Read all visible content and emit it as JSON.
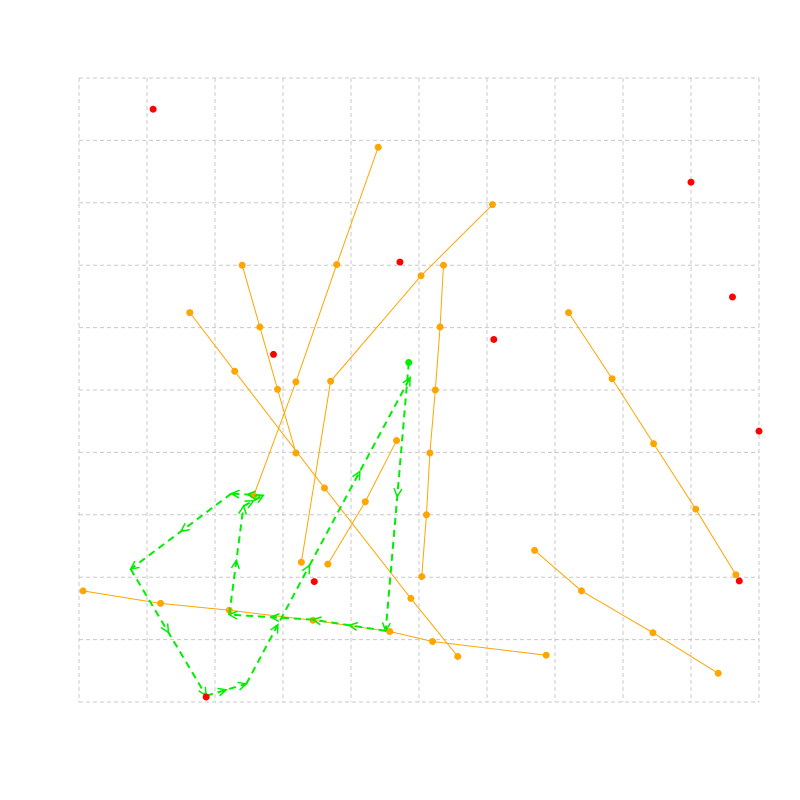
{
  "chart_data": {
    "type": "scatter",
    "title": "",
    "xlabel": "",
    "ylabel": "",
    "xlim": [
      0,
      10
    ],
    "ylim": [
      0,
      10
    ],
    "grid": true,
    "grid_style": "dashed",
    "ticks_visible": false,
    "colors": {
      "orange": "#ffa500",
      "red": "#ff0000",
      "green": "#00ee00",
      "grid": "#c8c8c8"
    },
    "orange_lines": [
      [
        [
          1.63,
          6.24
        ],
        [
          2.29,
          5.3
        ],
        [
          3.61,
          3.43
        ],
        [
          4.88,
          1.66
        ],
        [
          5.57,
          0.73
        ]
      ],
      [
        [
          2.4,
          7.0
        ],
        [
          2.66,
          6.01
        ],
        [
          2.92,
          5.01
        ],
        [
          3.19,
          3.99
        ]
      ],
      [
        [
          2.57,
          3.31
        ],
        [
          3.19,
          5.13
        ],
        [
          3.79,
          7.01
        ],
        [
          4.4,
          8.89
        ]
      ],
      [
        [
          5.36,
          7.0
        ],
        [
          5.31,
          6.01
        ],
        [
          5.24,
          5.0
        ],
        [
          5.16,
          3.99
        ],
        [
          5.11,
          3.0
        ],
        [
          5.04,
          2.01
        ]
      ],
      [
        [
          3.66,
          2.21
        ],
        [
          4.21,
          3.21
        ],
        [
          4.67,
          4.19
        ]
      ],
      [
        [
          3.27,
          2.24
        ],
        [
          3.7,
          5.14
        ],
        [
          5.03,
          6.83
        ],
        [
          6.08,
          7.97
        ]
      ],
      [
        [
          6.7,
          2.43
        ],
        [
          7.39,
          1.78
        ],
        [
          8.44,
          1.11
        ],
        [
          9.4,
          0.46
        ]
      ],
      [
        [
          7.2,
          6.24
        ],
        [
          7.84,
          5.18
        ],
        [
          8.45,
          4.14
        ],
        [
          9.07,
          3.09
        ],
        [
          9.66,
          2.04
        ]
      ],
      [
        [
          0.06,
          1.78
        ],
        [
          1.2,
          1.58
        ],
        [
          2.21,
          1.47
        ],
        [
          3.44,
          1.31
        ],
        [
          4.57,
          1.13
        ],
        [
          5.2,
          0.97
        ],
        [
          6.87,
          0.75
        ]
      ]
    ],
    "green_path": [
      [
        4.85,
        5.44
      ],
      [
        4.51,
        1.14
      ],
      [
        3.44,
        1.32
      ],
      [
        2.21,
        1.4
      ],
      [
        2.42,
        3.14
      ],
      [
        2.71,
        3.31
      ],
      [
        2.24,
        3.34
      ],
      [
        0.76,
        2.13
      ],
      [
        1.87,
        0.1
      ],
      [
        2.46,
        0.29
      ],
      [
        3.39,
        2.19
      ],
      [
        4.87,
        5.2
      ]
    ],
    "red_points": [
      [
        1.09,
        9.5
      ],
      [
        4.72,
        7.05
      ],
      [
        2.86,
        5.57
      ],
      [
        6.1,
        5.81
      ],
      [
        9.0,
        8.33
      ],
      [
        9.61,
        6.49
      ],
      [
        10.0,
        4.34
      ],
      [
        3.46,
        1.93
      ],
      [
        9.71,
        1.94
      ],
      [
        1.87,
        0.08
      ]
    ]
  }
}
